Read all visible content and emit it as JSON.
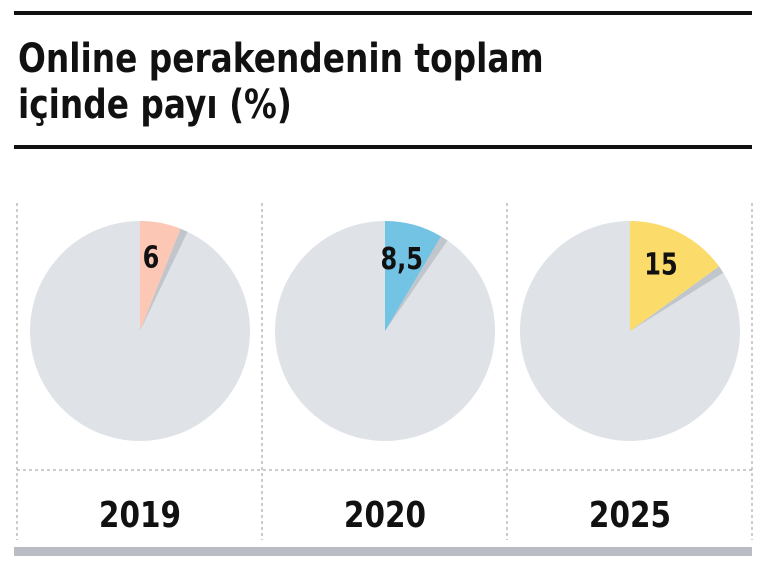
{
  "title": {
    "line1": "Online perakendenin toplam",
    "line2": "içinde payı (%)"
  },
  "colors": {
    "pie_background": "#dfe3e8",
    "slice_2019": "#fcc7b4",
    "slice_2020": "#73c3e4",
    "slice_2025": "#fbdc6b",
    "text": "#111111",
    "divider": "#9a9a9a"
  },
  "chart_data": {
    "type": "pie",
    "title": "Online perakendenin toplam içinde payı (%)",
    "unit": "%",
    "charts": [
      {
        "year": "2019",
        "label": "6",
        "value": 6
      },
      {
        "year": "2020",
        "label": "8,5",
        "value": 8.5
      },
      {
        "year": "2025",
        "label": "15",
        "value": 15
      }
    ]
  }
}
